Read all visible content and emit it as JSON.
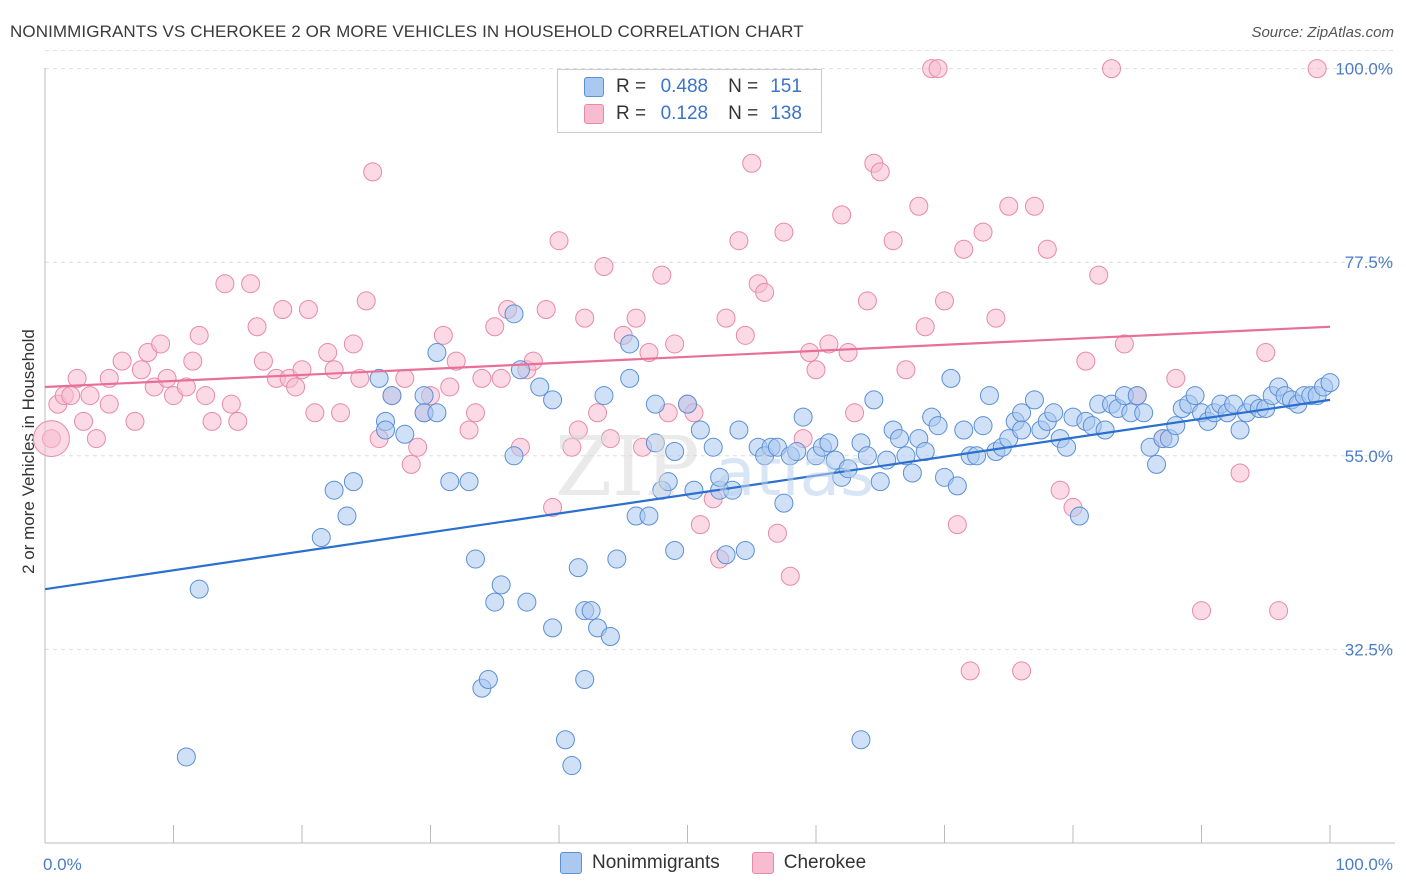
{
  "title": "NONIMMIGRANTS VS CHEROKEE 2 OR MORE VEHICLES IN HOUSEHOLD CORRELATION CHART",
  "source": "Source: ZipAtlas.com",
  "legend": {
    "rows": [
      {
        "r_label": "R =",
        "r_value": "0.488",
        "n_label": "N =",
        "n_value": "151"
      },
      {
        "r_label": "R =",
        "r_value": "0.128",
        "n_label": "N =",
        "n_value": "138"
      }
    ]
  },
  "bottom_legend": [
    "Nonimmigrants",
    "Cherokee"
  ],
  "colors": {
    "blue_fill": "#aac8f0",
    "blue_stroke": "#5b8fd6",
    "blue_line": "#2b6fcf",
    "pink_fill": "#f7bcd0",
    "pink_stroke": "#e889a8",
    "pink_line": "#e86f96",
    "grid": "#dddddd",
    "tick_text": "#4a7cc8"
  },
  "chart_data": {
    "type": "scatter",
    "title": "NONIMMIGRANTS VS CHEROKEE 2 OR MORE VEHICLES IN HOUSEHOLD CORRELATION CHART",
    "xlabel": "",
    "ylabel": "2 or more Vehicles in Household",
    "xlim": [
      0,
      100
    ],
    "ylim": [
      10,
      101
    ],
    "x_tick_labels": [
      "0.0%",
      "100.0%"
    ],
    "y_ticks": [
      32.5,
      55.0,
      77.5,
      100.0
    ],
    "y_tick_labels": [
      "32.5%",
      "55.0%",
      "77.5%",
      "100.0%"
    ],
    "grid": true,
    "legend_position": "top-center",
    "series": [
      {
        "name": "Nonimmigrants",
        "r": 0.488,
        "n": 151,
        "trend": {
          "x": [
            0,
            100
          ],
          "y": [
            39.5,
            61.5
          ]
        },
        "points": [
          [
            12,
            39.5
          ],
          [
            11,
            20
          ],
          [
            21.5,
            45.5
          ],
          [
            22.5,
            51
          ],
          [
            23.5,
            48
          ],
          [
            24,
            52
          ],
          [
            26.5,
            59
          ],
          [
            26.5,
            58
          ],
          [
            26,
            64
          ],
          [
            27,
            62
          ],
          [
            28,
            57.5
          ],
          [
            29.5,
            62
          ],
          [
            29.5,
            60
          ],
          [
            30.5,
            67
          ],
          [
            30.5,
            60
          ],
          [
            31.5,
            52
          ],
          [
            33,
            52
          ],
          [
            33.5,
            43
          ],
          [
            34,
            28
          ],
          [
            34.5,
            29
          ],
          [
            35,
            38
          ],
          [
            36.5,
            55
          ],
          [
            35.5,
            40
          ],
          [
            36.5,
            71.5
          ],
          [
            37,
            65
          ],
          [
            37.5,
            38
          ],
          [
            38.5,
            63
          ],
          [
            39.5,
            61.5
          ],
          [
            39.5,
            35
          ],
          [
            40.5,
            22
          ],
          [
            41,
            19
          ],
          [
            41.5,
            42
          ],
          [
            42,
            29
          ],
          [
            42,
            37
          ],
          [
            42.5,
            37
          ],
          [
            43,
            35
          ],
          [
            43.5,
            62
          ],
          [
            44,
            34
          ],
          [
            44.5,
            43
          ],
          [
            45.5,
            68
          ],
          [
            45.5,
            64
          ],
          [
            46,
            48
          ],
          [
            47,
            48
          ],
          [
            47.5,
            61
          ],
          [
            47.5,
            56.5
          ],
          [
            48,
            51
          ],
          [
            48.5,
            52
          ],
          [
            49,
            55.5
          ],
          [
            49,
            44
          ],
          [
            50,
            61
          ],
          [
            50.5,
            51
          ],
          [
            51,
            58
          ],
          [
            52,
            56
          ],
          [
            52.5,
            51
          ],
          [
            52.5,
            52.5
          ],
          [
            53,
            43.5
          ],
          [
            53.5,
            51
          ],
          [
            54,
            58
          ],
          [
            54.5,
            44
          ],
          [
            55.5,
            56
          ],
          [
            56,
            55
          ],
          [
            56.5,
            56
          ],
          [
            57,
            56
          ],
          [
            57.5,
            49.5
          ],
          [
            58,
            55
          ],
          [
            58.5,
            55.5
          ],
          [
            59,
            59.5
          ],
          [
            60,
            55
          ],
          [
            60.5,
            56
          ],
          [
            61,
            56.5
          ],
          [
            61.5,
            54.5
          ],
          [
            62,
            52.5
          ],
          [
            62.5,
            53.5
          ],
          [
            63.5,
            22
          ],
          [
            63.5,
            56.5
          ],
          [
            64,
            55
          ],
          [
            64.5,
            61.5
          ],
          [
            65,
            52
          ],
          [
            65.5,
            54.5
          ],
          [
            66,
            58
          ],
          [
            66.5,
            57
          ],
          [
            67,
            55
          ],
          [
            67.5,
            53
          ],
          [
            68,
            57
          ],
          [
            68.5,
            55.5
          ],
          [
            69,
            59.5
          ],
          [
            69.5,
            58.5
          ],
          [
            70,
            52.5
          ],
          [
            70.5,
            64
          ],
          [
            71,
            51.5
          ],
          [
            71.5,
            58
          ],
          [
            72,
            55
          ],
          [
            72.5,
            55
          ],
          [
            73,
            58.5
          ],
          [
            73.5,
            62
          ],
          [
            74,
            55.5
          ],
          [
            74.5,
            56
          ],
          [
            75,
            57
          ],
          [
            75.5,
            59
          ],
          [
            76,
            60
          ],
          [
            76,
            58
          ],
          [
            77,
            61.5
          ],
          [
            77.5,
            58
          ],
          [
            78,
            59
          ],
          [
            78.5,
            60
          ],
          [
            79,
            57
          ],
          [
            79.5,
            56
          ],
          [
            80,
            59.5
          ],
          [
            80.5,
            48
          ],
          [
            81,
            59
          ],
          [
            81.5,
            58.5
          ],
          [
            82,
            61
          ],
          [
            82.5,
            58
          ],
          [
            83,
            61
          ],
          [
            83.5,
            60.5
          ],
          [
            84,
            62
          ],
          [
            84.5,
            60
          ],
          [
            85,
            62
          ],
          [
            85.5,
            60
          ],
          [
            86,
            56
          ],
          [
            86.5,
            54
          ],
          [
            87,
            57
          ],
          [
            87.5,
            57
          ],
          [
            88,
            58.5
          ],
          [
            88.5,
            60.5
          ],
          [
            89,
            61
          ],
          [
            89.5,
            62
          ],
          [
            90,
            60
          ],
          [
            90.5,
            59
          ],
          [
            91,
            60
          ],
          [
            91.5,
            61
          ],
          [
            92,
            60
          ],
          [
            92.5,
            61
          ],
          [
            93,
            58
          ],
          [
            93.5,
            60
          ],
          [
            94,
            61
          ],
          [
            94.5,
            60.5
          ],
          [
            95,
            60.5
          ],
          [
            95.5,
            62
          ],
          [
            96,
            63
          ],
          [
            96.5,
            62
          ],
          [
            97,
            61.5
          ],
          [
            97.5,
            61
          ],
          [
            98,
            62
          ],
          [
            98.5,
            62
          ],
          [
            99,
            62
          ],
          [
            99.5,
            63
          ],
          [
            100,
            63.5
          ]
        ]
      },
      {
        "name": "Cherokee",
        "r": 0.128,
        "n": 138,
        "trend": {
          "x": [
            0,
            100
          ],
          "y": [
            63,
            70
          ]
        },
        "points": [
          [
            0.5,
            57
          ],
          [
            1,
            61
          ],
          [
            1.5,
            62
          ],
          [
            2,
            62
          ],
          [
            2.5,
            64
          ],
          [
            3,
            59
          ],
          [
            3.5,
            62
          ],
          [
            4,
            57
          ],
          [
            5,
            61
          ],
          [
            5,
            64
          ],
          [
            6,
            66
          ],
          [
            7,
            59
          ],
          [
            7.5,
            65
          ],
          [
            8,
            67
          ],
          [
            8.5,
            63
          ],
          [
            9,
            68
          ],
          [
            9.5,
            64
          ],
          [
            10,
            62
          ],
          [
            11,
            63
          ],
          [
            11.5,
            66
          ],
          [
            12,
            69
          ],
          [
            12.5,
            62
          ],
          [
            13,
            59
          ],
          [
            14,
            75
          ],
          [
            14.5,
            61
          ],
          [
            15,
            59
          ],
          [
            16,
            75
          ],
          [
            16.5,
            70
          ],
          [
            17,
            66
          ],
          [
            18,
            64
          ],
          [
            18.5,
            72
          ],
          [
            19,
            64
          ],
          [
            19.5,
            63
          ],
          [
            20,
            65
          ],
          [
            20.5,
            72
          ],
          [
            21,
            60
          ],
          [
            22,
            67
          ],
          [
            22.5,
            65
          ],
          [
            23,
            60
          ],
          [
            24,
            68
          ],
          [
            24.5,
            64
          ],
          [
            25,
            73
          ],
          [
            25.5,
            88
          ],
          [
            26,
            57
          ],
          [
            27,
            62
          ],
          [
            28,
            64
          ],
          [
            28.5,
            54
          ],
          [
            29,
            56
          ],
          [
            29.5,
            60
          ],
          [
            30,
            62
          ],
          [
            31,
            69
          ],
          [
            31.5,
            63
          ],
          [
            32,
            66
          ],
          [
            33,
            58
          ],
          [
            33.5,
            60
          ],
          [
            34,
            64
          ],
          [
            35,
            70
          ],
          [
            35.5,
            64
          ],
          [
            36,
            72
          ],
          [
            37,
            56
          ],
          [
            37.5,
            65
          ],
          [
            38,
            66
          ],
          [
            39,
            72
          ],
          [
            39.5,
            49
          ],
          [
            40,
            80
          ],
          [
            41,
            56
          ],
          [
            41.5,
            58
          ],
          [
            42,
            71
          ],
          [
            43,
            60
          ],
          [
            43.5,
            77
          ],
          [
            44,
            57
          ],
          [
            45,
            69
          ],
          [
            46,
            71
          ],
          [
            46.5,
            56
          ],
          [
            47,
            67
          ],
          [
            48,
            76
          ],
          [
            48.5,
            60
          ],
          [
            49,
            68
          ],
          [
            50,
            61
          ],
          [
            50.5,
            60
          ],
          [
            51,
            47
          ],
          [
            52,
            50
          ],
          [
            52.5,
            43
          ],
          [
            53,
            71
          ],
          [
            54,
            80
          ],
          [
            54.5,
            69
          ],
          [
            55,
            89
          ],
          [
            55.5,
            75
          ],
          [
            56,
            74
          ],
          [
            57,
            46
          ],
          [
            57.5,
            81
          ],
          [
            58,
            41
          ],
          [
            59,
            57
          ],
          [
            59.5,
            67
          ],
          [
            60,
            65
          ],
          [
            61,
            68
          ],
          [
            62,
            83
          ],
          [
            62.5,
            67
          ],
          [
            63,
            60
          ],
          [
            64,
            73
          ],
          [
            64.5,
            89
          ],
          [
            65,
            88
          ],
          [
            66,
            80
          ],
          [
            67,
            65
          ],
          [
            68,
            84
          ],
          [
            68.5,
            70
          ],
          [
            69,
            100
          ],
          [
            69.5,
            100
          ],
          [
            70,
            73
          ],
          [
            71,
            47
          ],
          [
            71.5,
            79
          ],
          [
            72,
            30
          ],
          [
            73,
            81
          ],
          [
            74,
            71
          ],
          [
            75,
            84
          ],
          [
            76,
            30
          ],
          [
            77,
            84
          ],
          [
            78,
            79
          ],
          [
            79,
            51
          ],
          [
            80,
            49
          ],
          [
            81,
            66
          ],
          [
            82,
            76
          ],
          [
            83,
            100
          ],
          [
            84,
            68
          ],
          [
            85,
            62
          ],
          [
            87,
            57
          ],
          [
            88,
            64
          ],
          [
            90,
            37
          ],
          [
            93,
            53
          ],
          [
            95,
            67
          ],
          [
            96,
            37
          ],
          [
            99,
            100
          ]
        ]
      }
    ]
  }
}
